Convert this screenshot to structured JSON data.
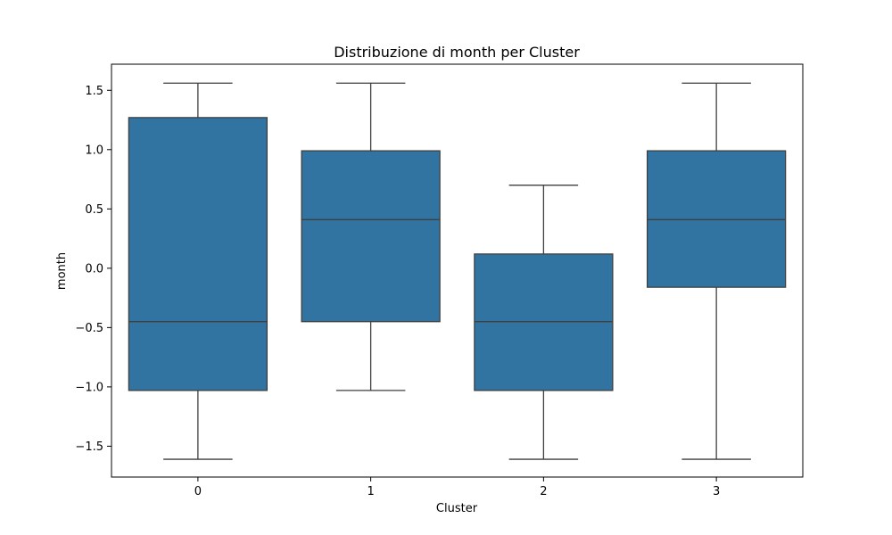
{
  "chart_data": {
    "type": "box",
    "title": "Distribuzione di month per Cluster",
    "xlabel": "Cluster",
    "ylabel": "month",
    "categories": [
      "0",
      "1",
      "2",
      "3"
    ],
    "ylim": [
      -1.76,
      1.72
    ],
    "yticks": [
      -1.5,
      -1.0,
      -0.5,
      0.0,
      0.5,
      1.0,
      1.5
    ],
    "ytick_labels": [
      "−1.5",
      "−1.0",
      "−0.5",
      "0.0",
      "0.5",
      "1.0",
      "1.5"
    ],
    "grid": false,
    "box_color": "#3274a1",
    "line_color": "#3f3f3f",
    "boxes": [
      {
        "category": "0",
        "whisker_low": -1.61,
        "q1": -1.03,
        "median": -0.45,
        "q3": 1.27,
        "whisker_high": 1.56
      },
      {
        "category": "1",
        "whisker_low": -1.03,
        "q1": -0.45,
        "median": 0.41,
        "q3": 0.99,
        "whisker_high": 1.56
      },
      {
        "category": "2",
        "whisker_low": -1.61,
        "q1": -1.03,
        "median": -0.45,
        "q3": 0.12,
        "whisker_high": 0.7
      },
      {
        "category": "3",
        "whisker_low": -1.61,
        "q1": -0.16,
        "median": 0.41,
        "q3": 0.99,
        "whisker_high": 1.56
      }
    ]
  }
}
